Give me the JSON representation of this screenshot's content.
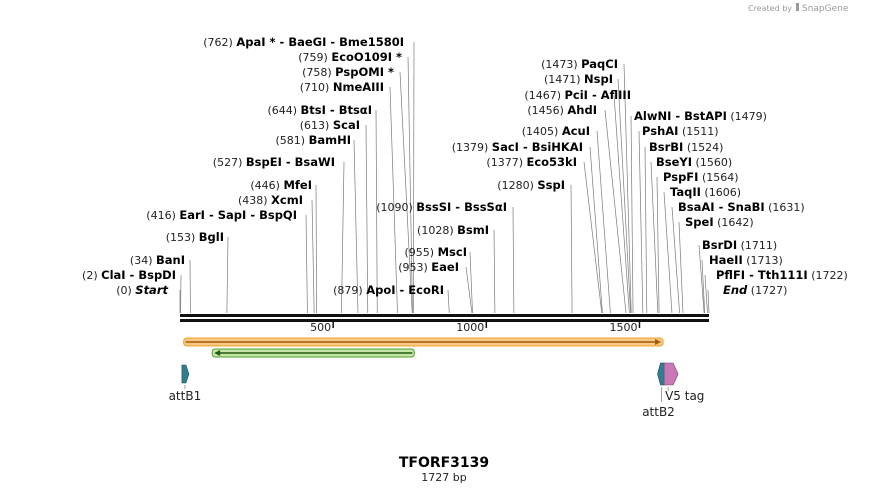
{
  "header": {
    "created_by": "Created by",
    "brand": "SnapGene"
  },
  "map": {
    "title": "TFORF3139",
    "length_label": "1727 bp",
    "length": 1727
  },
  "ruler": {
    "ticks": [
      "500",
      "1000",
      "1500"
    ]
  },
  "sites_left": [
    {
      "pos": "(762)",
      "parts": [
        "ApaI *",
        "BaeGI",
        "Bme1580I"
      ],
      "site": 762
    },
    {
      "pos": "(759)",
      "parts": [
        "EcoO109I *"
      ],
      "site": 759
    },
    {
      "pos": "(758)",
      "parts": [
        "PspOMI *"
      ],
      "site": 758
    },
    {
      "pos": "(710)",
      "parts": [
        "NmeAIII"
      ],
      "site": 710
    },
    {
      "pos": "(644)",
      "parts": [
        "BtsI",
        "BtsαI"
      ],
      "site": 644
    },
    {
      "pos": "(613)",
      "parts": [
        "ScaI"
      ],
      "site": 613
    },
    {
      "pos": "(581)",
      "parts": [
        "BamHI"
      ],
      "site": 581
    },
    {
      "pos": "(527)",
      "parts": [
        "BspEI",
        "BsaWI"
      ],
      "site": 527
    },
    {
      "pos": "(446)",
      "parts": [
        "MfeI"
      ],
      "site": 446
    },
    {
      "pos": "(438)",
      "parts": [
        "XcmI"
      ],
      "site": 438
    },
    {
      "pos": "(416)",
      "parts": [
        "EarI",
        "SapI",
        "BspQI"
      ],
      "site": 416
    },
    {
      "pos": "(153)",
      "parts": [
        "BglI"
      ],
      "site": 153
    },
    {
      "pos": "(34)",
      "parts": [
        "BanI"
      ],
      "site": 34
    },
    {
      "pos": "(2)",
      "parts": [
        "ClaI",
        "BspDI"
      ],
      "site": 2
    },
    {
      "pos": "(0)",
      "parts": [
        "Start"
      ],
      "site": 0,
      "italic": true
    }
  ],
  "sites_mid": [
    {
      "pos": "(1090)",
      "parts": [
        "BssSI",
        "BssSαI"
      ],
      "site": 1090
    },
    {
      "pos": "(1028)",
      "parts": [
        "BsmI"
      ],
      "site": 1028
    },
    {
      "pos": "(955)",
      "parts": [
        "MscI"
      ],
      "site": 955
    },
    {
      "pos": "(953)",
      "parts": [
        "EaeI"
      ],
      "site": 953
    },
    {
      "pos": "(879)",
      "parts": [
        "ApoI",
        "EcoRI"
      ],
      "site": 879
    }
  ],
  "sites_center": [
    {
      "pos": "(1473)",
      "parts": [
        "PaqCI"
      ],
      "site": 1473
    },
    {
      "pos": "(1471)",
      "parts": [
        "NspI"
      ],
      "site": 1471
    },
    {
      "pos": "(1467)",
      "parts": [
        "PciI",
        "AflIII"
      ],
      "site": 1467
    },
    {
      "pos": "(1456)",
      "parts": [
        "AhdI"
      ],
      "site": 1456
    },
    {
      "pos": "(1405)",
      "parts": [
        "AcuI"
      ],
      "site": 1405
    },
    {
      "pos": "(1379)",
      "parts": [
        "SacI",
        "BsiHKAI"
      ],
      "site": 1379
    },
    {
      "pos": "(1377)",
      "parts": [
        "Eco53kI"
      ],
      "site": 1377
    },
    {
      "pos": "(1280)",
      "parts": [
        "SspI"
      ],
      "site": 1280
    }
  ],
  "sites_right": [
    {
      "pos": "(1479)",
      "parts": [
        "AlwNI",
        "BstAPI"
      ],
      "site": 1479
    },
    {
      "pos": "(1511)",
      "parts": [
        "PshAI"
      ],
      "site": 1511
    },
    {
      "pos": "(1524)",
      "parts": [
        "BsrBI"
      ],
      "site": 1524
    },
    {
      "pos": "(1560)",
      "parts": [
        "BseYI"
      ],
      "site": 1560
    },
    {
      "pos": "(1564)",
      "parts": [
        "PspFI"
      ],
      "site": 1564
    },
    {
      "pos": "(1606)",
      "parts": [
        "TaqII"
      ],
      "site": 1606
    },
    {
      "pos": "(1631)",
      "parts": [
        "BsaAI",
        "SnaBI"
      ],
      "site": 1631
    },
    {
      "pos": "(1642)",
      "parts": [
        "SpeI"
      ],
      "site": 1642
    },
    {
      "pos": "(1711)",
      "parts": [
        "BsrDI"
      ],
      "site": 1711
    },
    {
      "pos": "(1713)",
      "parts": [
        "HaeII"
      ],
      "site": 1713
    },
    {
      "pos": "(1722)",
      "parts": [
        "PflFI",
        "Tth111I"
      ],
      "site": 1722
    },
    {
      "pos": "(1727)",
      "parts": [
        "End"
      ],
      "site": 1727,
      "italic": true
    }
  ],
  "features": {
    "orf_forward": {
      "color": "#f0a020",
      "start": 12,
      "end": 1564
    },
    "orf_reverse": {
      "color": "#4aa02a",
      "start": 765,
      "end": 118
    },
    "attB1": {
      "label": "attB1",
      "color": "#2f7f8f",
      "site": 16
    },
    "attB2": {
      "label": "attB2",
      "color": "#2f7f8f",
      "site": 1572
    },
    "v5_tag": {
      "label": "V5 tag",
      "color": "#c878b4",
      "site": 1600
    }
  }
}
